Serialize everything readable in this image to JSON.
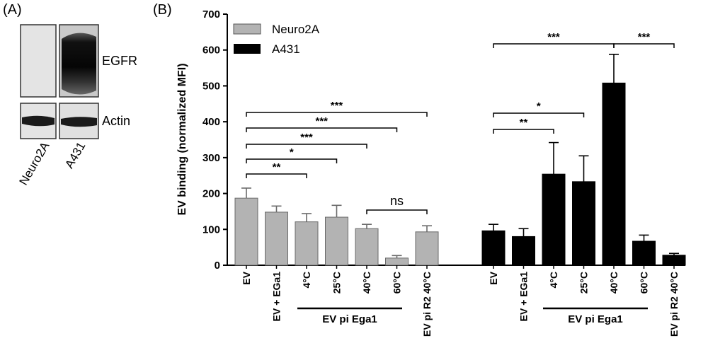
{
  "panel_a": {
    "label": "(A)",
    "bands": {
      "egfr": "EGFR",
      "actin": "Actin"
    },
    "lanes": [
      "Neuro2A",
      "A431"
    ]
  },
  "panel_b": {
    "label": "(B)",
    "group_label_1": "EV pi Ega1",
    "group_label_2": "EV pi Ega1"
  },
  "colors": {
    "neuro2a": "#b3b3b3",
    "a431": "#000000"
  },
  "chart_data": {
    "type": "bar",
    "ylabel": "EV binding  (normalized MFI)",
    "ylim": [
      0,
      700
    ],
    "yticks": [
      0,
      100,
      200,
      300,
      400,
      500,
      600,
      700
    ],
    "legend": {
      "position": "top-left"
    },
    "grid": false,
    "series": [
      {
        "name": "Neuro2A",
        "categories": [
          "EV",
          "EV + EGa1",
          "4°C",
          "25°C",
          "40°C",
          "60°C",
          "EV pi R2 40°C"
        ],
        "values": [
          187,
          148,
          121,
          134,
          102,
          20,
          93
        ],
        "errors": [
          28,
          17,
          23,
          33,
          12,
          7,
          17
        ]
      },
      {
        "name": "A431",
        "categories": [
          "EV",
          "EV + EGa1",
          "4°C",
          "25°C",
          "40°C",
          "60°C",
          "EV pi R2 40°C"
        ],
        "values": [
          96,
          80,
          254,
          233,
          508,
          67,
          28
        ],
        "errors": [
          18,
          22,
          88,
          72,
          80,
          17,
          5
        ]
      }
    ],
    "significance": [
      {
        "series": "Neuro2A",
        "from": 0,
        "to": 2,
        "label": "**"
      },
      {
        "series": "Neuro2A",
        "from": 0,
        "to": 3,
        "label": "*"
      },
      {
        "series": "Neuro2A",
        "from": 0,
        "to": 4,
        "label": "***"
      },
      {
        "series": "Neuro2A",
        "from": 0,
        "to": 5,
        "label": "***"
      },
      {
        "series": "Neuro2A",
        "from": 0,
        "to": 6,
        "label": "***"
      },
      {
        "series": "Neuro2A",
        "from": 4,
        "to": 6,
        "label": "ns"
      },
      {
        "series": "A431",
        "from": 0,
        "to": 2,
        "label": "**"
      },
      {
        "series": "A431",
        "from": 0,
        "to": 3,
        "label": "*"
      },
      {
        "series": "A431",
        "from": 0,
        "to": 4,
        "label": "***"
      },
      {
        "series": "A431",
        "from": 4,
        "to": 6,
        "label": "***"
      }
    ]
  }
}
